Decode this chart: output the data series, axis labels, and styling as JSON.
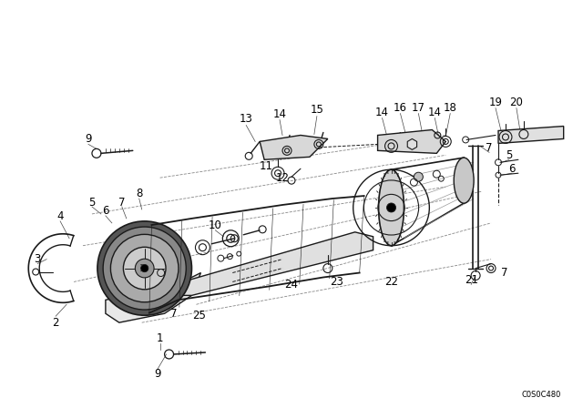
{
  "bg_color": "#ffffff",
  "line_color": "#1a1a1a",
  "watermark": "C0S0C480",
  "fig_width": 6.4,
  "fig_height": 4.48,
  "dpi": 100
}
